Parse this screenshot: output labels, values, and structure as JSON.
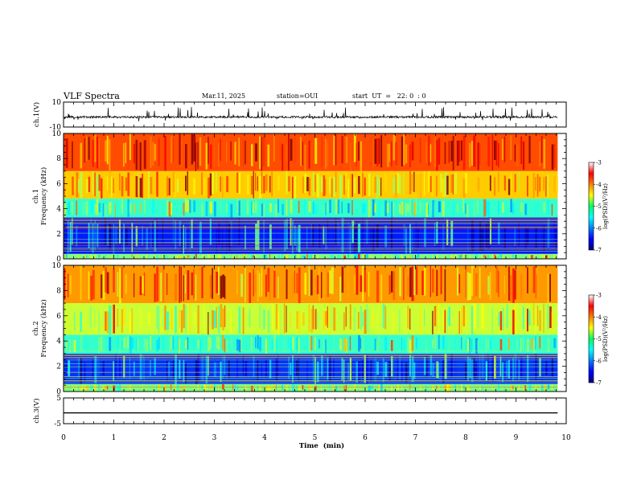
{
  "header": {
    "title": "VLF Spectra",
    "date": "Mar.11, 2025",
    "station": "station=OUI",
    "start": "start  UT  =   22: 0  : 0"
  },
  "chart_data": [
    {
      "type": "line",
      "id": "ch1-waveform",
      "ylabel": "ch.1(V)",
      "ylim": [
        -10,
        10
      ],
      "y_ticks": [
        "10",
        "-10"
      ],
      "xlim": [
        0,
        10
      ],
      "baseline_v": -2.0,
      "data_end_min": 9.83,
      "color": "#000000"
    },
    {
      "type": "heatmap",
      "id": "ch1-spectrogram",
      "ylabel": "ch.1\nFrequency (kHz)",
      "ylim": [
        0,
        10
      ],
      "y_ticks": [
        "0",
        "2",
        "4",
        "6",
        "8",
        "10"
      ],
      "xlim": [
        0,
        10
      ],
      "data_end_min": 9.83,
      "bands": [
        {
          "from_khz": 0.0,
          "to_khz": 0.4,
          "log_psd": -5.0
        },
        {
          "from_khz": 0.4,
          "to_khz": 3.3,
          "log_psd": -6.4
        },
        {
          "from_khz": 3.3,
          "to_khz": 4.8,
          "log_psd": -5.3
        },
        {
          "from_khz": 4.8,
          "to_khz": 7.0,
          "log_psd": -4.3
        },
        {
          "from_khz": 7.0,
          "to_khz": 10.0,
          "log_psd": -3.8
        }
      ],
      "colorbar": {
        "label": "log(PSD)(V²/Hz)",
        "ticks": [
          "-3",
          "-4",
          "-5",
          "-6",
          "-7"
        ],
        "range": [
          -7,
          -3
        ]
      }
    },
    {
      "type": "heatmap",
      "id": "ch2-spectrogram",
      "ylabel": "ch.2\nFrequency (kHz)",
      "ylim": [
        0,
        10
      ],
      "y_ticks": [
        "0",
        "2",
        "4",
        "6",
        "8",
        "10"
      ],
      "xlim": [
        0,
        10
      ],
      "data_end_min": 9.83,
      "bands": [
        {
          "from_khz": 0.0,
          "to_khz": 0.6,
          "log_psd": -5.0
        },
        {
          "from_khz": 0.6,
          "to_khz": 3.0,
          "log_psd": -6.3
        },
        {
          "from_khz": 3.0,
          "to_khz": 4.5,
          "log_psd": -5.3
        },
        {
          "from_khz": 4.5,
          "to_khz": 7.0,
          "log_psd": -4.7
        },
        {
          "from_khz": 7.0,
          "to_khz": 10.0,
          "log_psd": -4.1
        }
      ],
      "colorbar": {
        "label": "log(PSD)(V²/Hz)",
        "ticks": [
          "-3",
          "-4",
          "-5",
          "-6",
          "-7"
        ],
        "range": [
          -7,
          -3
        ]
      }
    },
    {
      "type": "line",
      "id": "ch3-waveform",
      "ylabel": "ch.3(V)",
      "ylim": [
        -5,
        5
      ],
      "y_ticks": [
        "5",
        "-5"
      ],
      "xlim": [
        0,
        10
      ],
      "constant_v": -0.8,
      "data_end_min": 9.83,
      "color": "#000000"
    }
  ],
  "x_axis": {
    "label": "Time  (min)",
    "ticks": [
      "0",
      "1",
      "2",
      "3",
      "4",
      "5",
      "6",
      "7",
      "8",
      "9",
      "10"
    ],
    "range": [
      0,
      10
    ]
  },
  "colors": {
    "jet_low": "#00007f",
    "jet_mid": "#00ff7f",
    "jet_high": "#ff2000"
  }
}
